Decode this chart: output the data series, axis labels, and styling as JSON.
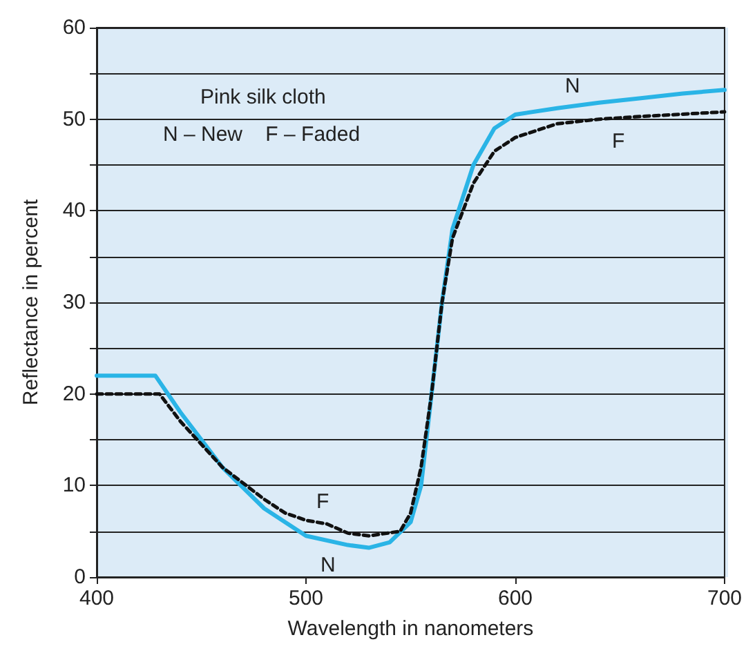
{
  "chart_data": {
    "type": "line",
    "xlabel": "Wavelength in nanometers",
    "ylabel": "Reflectance in percent",
    "xlim": [
      400,
      700
    ],
    "xticks": [
      400,
      500,
      600,
      700
    ],
    "ylim": [
      0,
      60
    ],
    "yticks": [
      0,
      {
        "value": 5,
        "label": null
      },
      10,
      {
        "value": 15,
        "label": null
      },
      20,
      {
        "value": 25,
        "label": null
      },
      30,
      {
        "value": 35,
        "label": null
      },
      40,
      {
        "value": 45,
        "label": null
      },
      50,
      {
        "value": 55,
        "label": null
      },
      60
    ],
    "grid": "y",
    "marker": "none",
    "series": [
      {
        "color": "#2ab4e6",
        "line_style": "solid",
        "x": [
          400,
          428,
          440,
          460,
          480,
          500,
          520,
          530,
          540,
          550,
          555,
          560,
          565,
          570,
          580,
          590,
          600,
          620,
          640,
          660,
          680,
          700
        ],
        "values": [
          22,
          22,
          18,
          12,
          7.5,
          4.5,
          3.5,
          3.2,
          3.8,
          6,
          10,
          20,
          30,
          38,
          45,
          49,
          50.5,
          51.2,
          51.8,
          52.3,
          52.8,
          53.2
        ]
      },
      {
        "color": "#111111",
        "line_style": "dashed",
        "x": [
          400,
          430,
          440,
          460,
          480,
          490,
          500,
          510,
          520,
          530,
          545,
          550,
          555,
          560,
          565,
          570,
          580,
          590,
          600,
          620,
          640,
          660,
          700
        ],
        "values": [
          20,
          20,
          17,
          12,
          8.5,
          7,
          6.2,
          5.8,
          4.8,
          4.5,
          5,
          7,
          12,
          20,
          30,
          37,
          43,
          46.5,
          48,
          49.5,
          50,
          50.3,
          50.8
        ]
      }
    ],
    "annotations": [
      "Pink silk cloth",
      "N – New    F – Faded",
      "N",
      "F",
      "F",
      "N"
    ]
  }
}
